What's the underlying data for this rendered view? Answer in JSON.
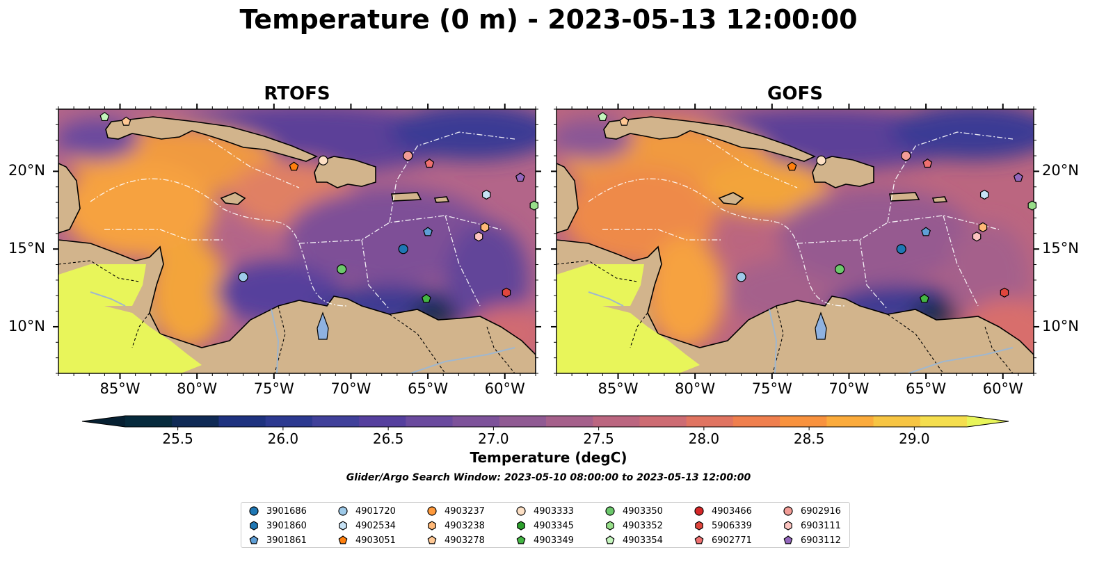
{
  "title": "Temperature (0 m) - 2023-05-13 12:00:00",
  "panels": [
    {
      "title": "RTOFS",
      "model": "rtofs"
    },
    {
      "title": "GOFS",
      "model": "gofs"
    }
  ],
  "lon_ticks": [
    "85°W",
    "80°W",
    "75°W",
    "70°W",
    "65°W",
    "60°W"
  ],
  "lon_values": [
    -85,
    -80,
    -75,
    -70,
    -65,
    -60
  ],
  "lat_ticks": [
    "20°N",
    "15°N",
    "10°N"
  ],
  "lat_values": [
    20,
    15,
    10
  ],
  "extent": {
    "lon": [
      -89,
      -58
    ],
    "lat": [
      7,
      24
    ]
  },
  "colorbar": {
    "label": "Temperature (degC)",
    "ticks": [
      "25.5",
      "26.0",
      "26.5",
      "27.0",
      "27.5",
      "28.0",
      "28.5",
      "29.0"
    ],
    "tick_values": [
      25.5,
      26.0,
      26.5,
      27.0,
      27.5,
      28.0,
      28.5,
      29.0
    ],
    "range": [
      25.25,
      29.25
    ],
    "step": 0.25,
    "extend": "both",
    "colors": [
      "#062a3c",
      "#0f2a55",
      "#1e327f",
      "#2c3990",
      "#40409a",
      "#553f9e",
      "#6a4a9e",
      "#7d529a",
      "#905a93",
      "#a5608b",
      "#bb6680",
      "#cd6c73",
      "#e07461",
      "#ef7f4e",
      "#f8923e",
      "#fbab3c",
      "#f7c543",
      "#f5de4e",
      "#e8f55a"
    ],
    "low_color": "#062032",
    "high_color": "#e8f55a",
    "cmap": "thermal"
  },
  "search_window": "Glider/Argo Search Window: 2023-05-10 08:00:00 to 2023-05-13 12:00:00",
  "legend": [
    {
      "id": "3901686",
      "marker": "circle",
      "color": "#1f77b4"
    },
    {
      "id": "3901860",
      "marker": "hexagon",
      "color": "#1f77b4"
    },
    {
      "id": "3901861",
      "marker": "pentagon",
      "color": "#5f9fd6"
    },
    {
      "id": "4901720",
      "marker": "circle",
      "color": "#9ecae9"
    },
    {
      "id": "4902534",
      "marker": "hexagon",
      "color": "#c6e2f5"
    },
    {
      "id": "4903051",
      "marker": "pentagon",
      "color": "#ff7f0e"
    },
    {
      "id": "4903237",
      "marker": "circle",
      "color": "#ff9a3c"
    },
    {
      "id": "4903238",
      "marker": "hexagon",
      "color": "#ffb877"
    },
    {
      "id": "4903278",
      "marker": "pentagon",
      "color": "#ffc894"
    },
    {
      "id": "4903333",
      "marker": "circle",
      "color": "#fde0c5"
    },
    {
      "id": "4903345",
      "marker": "hexagon",
      "color": "#2ca02c"
    },
    {
      "id": "4903349",
      "marker": "pentagon",
      "color": "#44b644"
    },
    {
      "id": "4903350",
      "marker": "circle",
      "color": "#6cc86c"
    },
    {
      "id": "4903352",
      "marker": "hexagon",
      "color": "#98df8a"
    },
    {
      "id": "4903354",
      "marker": "pentagon",
      "color": "#c4f5bd"
    },
    {
      "id": "4903466",
      "marker": "circle",
      "color": "#d62728"
    },
    {
      "id": "5906339",
      "marker": "hexagon",
      "color": "#e0463d"
    },
    {
      "id": "6902771",
      "marker": "pentagon",
      "color": "#ee7070"
    },
    {
      "id": "6902916",
      "marker": "circle",
      "color": "#f29c96"
    },
    {
      "id": "6903111",
      "marker": "hexagon",
      "color": "#fcc4c0"
    },
    {
      "id": "6903112",
      "marker": "pentagon",
      "color": "#9467bd"
    }
  ],
  "floats": [
    {
      "id": "4903354",
      "lon": -86.0,
      "lat": 23.5
    },
    {
      "id": "4903278",
      "lon": -84.6,
      "lat": 23.2
    },
    {
      "id": "4903051",
      "lon": -73.7,
      "lat": 20.3
    },
    {
      "id": "4903333",
      "lon": -71.8,
      "lat": 20.7
    },
    {
      "id": "6902916",
      "lon": -66.3,
      "lat": 21.0
    },
    {
      "id": "6902771",
      "lon": -64.9,
      "lat": 20.5
    },
    {
      "id": "4902534",
      "lon": -61.2,
      "lat": 18.5
    },
    {
      "id": "6903112",
      "lon": -59.0,
      "lat": 19.6
    },
    {
      "id": "4903352",
      "lon": -58.1,
      "lat": 17.8
    },
    {
      "id": "4903238",
      "lon": -61.3,
      "lat": 16.4
    },
    {
      "id": "3901861",
      "lon": -65.0,
      "lat": 16.1
    },
    {
      "id": "3901686",
      "lon": -66.6,
      "lat": 15.0
    },
    {
      "id": "6903111",
      "lon": -61.7,
      "lat": 15.8
    },
    {
      "id": "4903350",
      "lon": -70.6,
      "lat": 13.7
    },
    {
      "id": "4901720",
      "lon": -77.0,
      "lat": 13.2
    },
    {
      "id": "4903349",
      "lon": -65.1,
      "lat": 11.8
    },
    {
      "id": "5906339",
      "lon": -59.9,
      "lat": 12.2
    }
  ]
}
